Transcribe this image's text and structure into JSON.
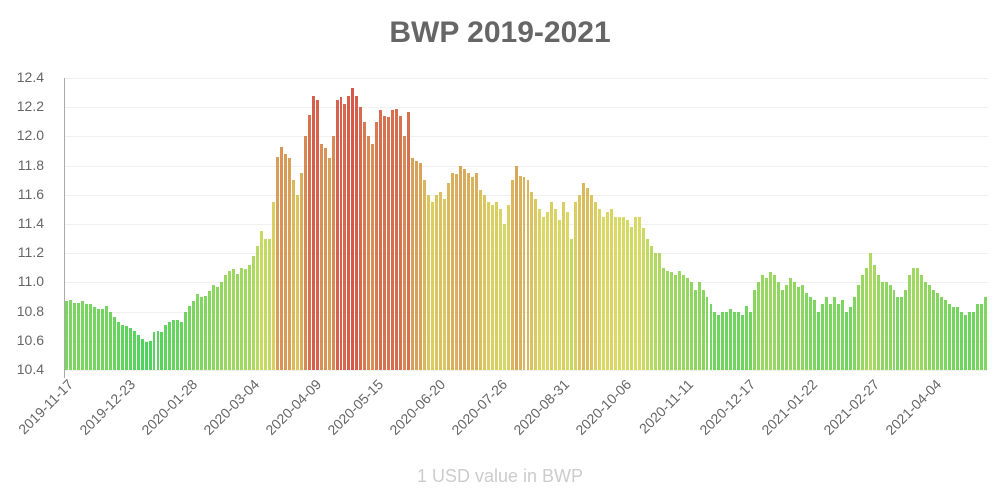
{
  "chart_data": {
    "type": "bar",
    "title": "BWP 2019-2021",
    "xlabel": "1 USD value in BWP",
    "ylabel": "",
    "ylim": [
      10.4,
      12.4
    ],
    "yticks": [
      "12.4",
      "12.2",
      "12.0",
      "11.8",
      "11.6",
      "11.4",
      "11.2",
      "11.0",
      "10.8",
      "10.6",
      "10.4"
    ],
    "xticks": [
      "2019-11-17",
      "2019-12-23",
      "2020-01-28",
      "2020-03-04",
      "2020-04-09",
      "2020-05-15",
      "2020-06-20",
      "2020-07-26",
      "2020-08-31",
      "2020-10-06",
      "2020-11-11",
      "2020-12-17",
      "2021-01-22",
      "2021-02-27",
      "2021-04-04"
    ],
    "grid": true,
    "legend": "none",
    "color_scale": {
      "low": "#2ecc40",
      "mid": "#d4d44a",
      "high": "#d0392b"
    },
    "values": [
      10.87,
      10.88,
      10.86,
      10.86,
      10.87,
      10.85,
      10.85,
      10.83,
      10.82,
      10.82,
      10.84,
      10.8,
      10.76,
      10.73,
      10.71,
      10.7,
      10.69,
      10.67,
      10.64,
      10.61,
      10.59,
      10.6,
      10.66,
      10.67,
      10.66,
      10.71,
      10.73,
      10.74,
      10.74,
      10.73,
      10.8,
      10.84,
      10.87,
      10.92,
      10.9,
      10.91,
      10.94,
      10.98,
      10.97,
      11.0,
      11.05,
      11.08,
      11.09,
      11.06,
      11.1,
      11.09,
      11.12,
      11.18,
      11.25,
      11.35,
      11.3,
      11.3,
      11.55,
      11.86,
      11.93,
      11.88,
      11.85,
      11.7,
      11.6,
      11.75,
      12.0,
      12.15,
      12.28,
      12.25,
      11.95,
      11.92,
      11.85,
      12.0,
      12.25,
      12.27,
      12.22,
      12.28,
      12.33,
      12.28,
      12.2,
      12.1,
      12.0,
      11.95,
      12.1,
      12.18,
      12.14,
      12.13,
      12.18,
      12.19,
      12.14,
      12.0,
      12.17,
      11.85,
      11.83,
      11.82,
      11.7,
      11.6,
      11.55,
      11.6,
      11.62,
      11.57,
      11.68,
      11.75,
      11.74,
      11.8,
      11.78,
      11.75,
      11.72,
      11.75,
      11.63,
      11.6,
      11.55,
      11.53,
      11.55,
      11.5,
      11.4,
      11.53,
      11.7,
      11.8,
      11.73,
      11.72,
      11.7,
      11.62,
      11.57,
      11.5,
      11.45,
      11.48,
      11.55,
      11.5,
      11.43,
      11.55,
      11.48,
      11.3,
      11.55,
      11.6,
      11.68,
      11.65,
      11.6,
      11.55,
      11.5,
      11.45,
      11.48,
      11.5,
      11.45,
      11.45,
      11.45,
      11.43,
      11.38,
      11.45,
      11.45,
      11.37,
      11.3,
      11.25,
      11.2,
      11.2,
      11.1,
      11.08,
      11.07,
      11.05,
      11.08,
      11.05,
      11.03,
      11.0,
      10.95,
      11.0,
      10.95,
      10.9,
      10.85,
      10.8,
      10.78,
      10.8,
      10.8,
      10.82,
      10.8,
      10.8,
      10.78,
      10.84,
      10.8,
      10.95,
      11.0,
      11.05,
      11.03,
      11.07,
      11.05,
      11.0,
      10.95,
      10.98,
      11.03,
      11.0,
      10.97,
      10.98,
      10.93,
      10.9,
      10.88,
      10.8,
      10.85,
      10.9,
      10.85,
      10.9,
      10.85,
      10.88,
      10.8,
      10.83,
      10.9,
      10.98,
      11.05,
      11.1,
      11.2,
      11.12,
      11.05,
      11.0,
      11.0,
      10.98,
      10.95,
      10.9,
      10.9,
      10.95,
      11.05,
      11.1,
      11.1,
      11.05,
      11.0,
      10.98,
      10.95,
      10.93,
      10.9,
      10.88,
      10.85,
      10.83,
      10.83,
      10.8,
      10.78,
      10.8,
      10.8,
      10.85,
      10.85,
      10.9
    ]
  }
}
